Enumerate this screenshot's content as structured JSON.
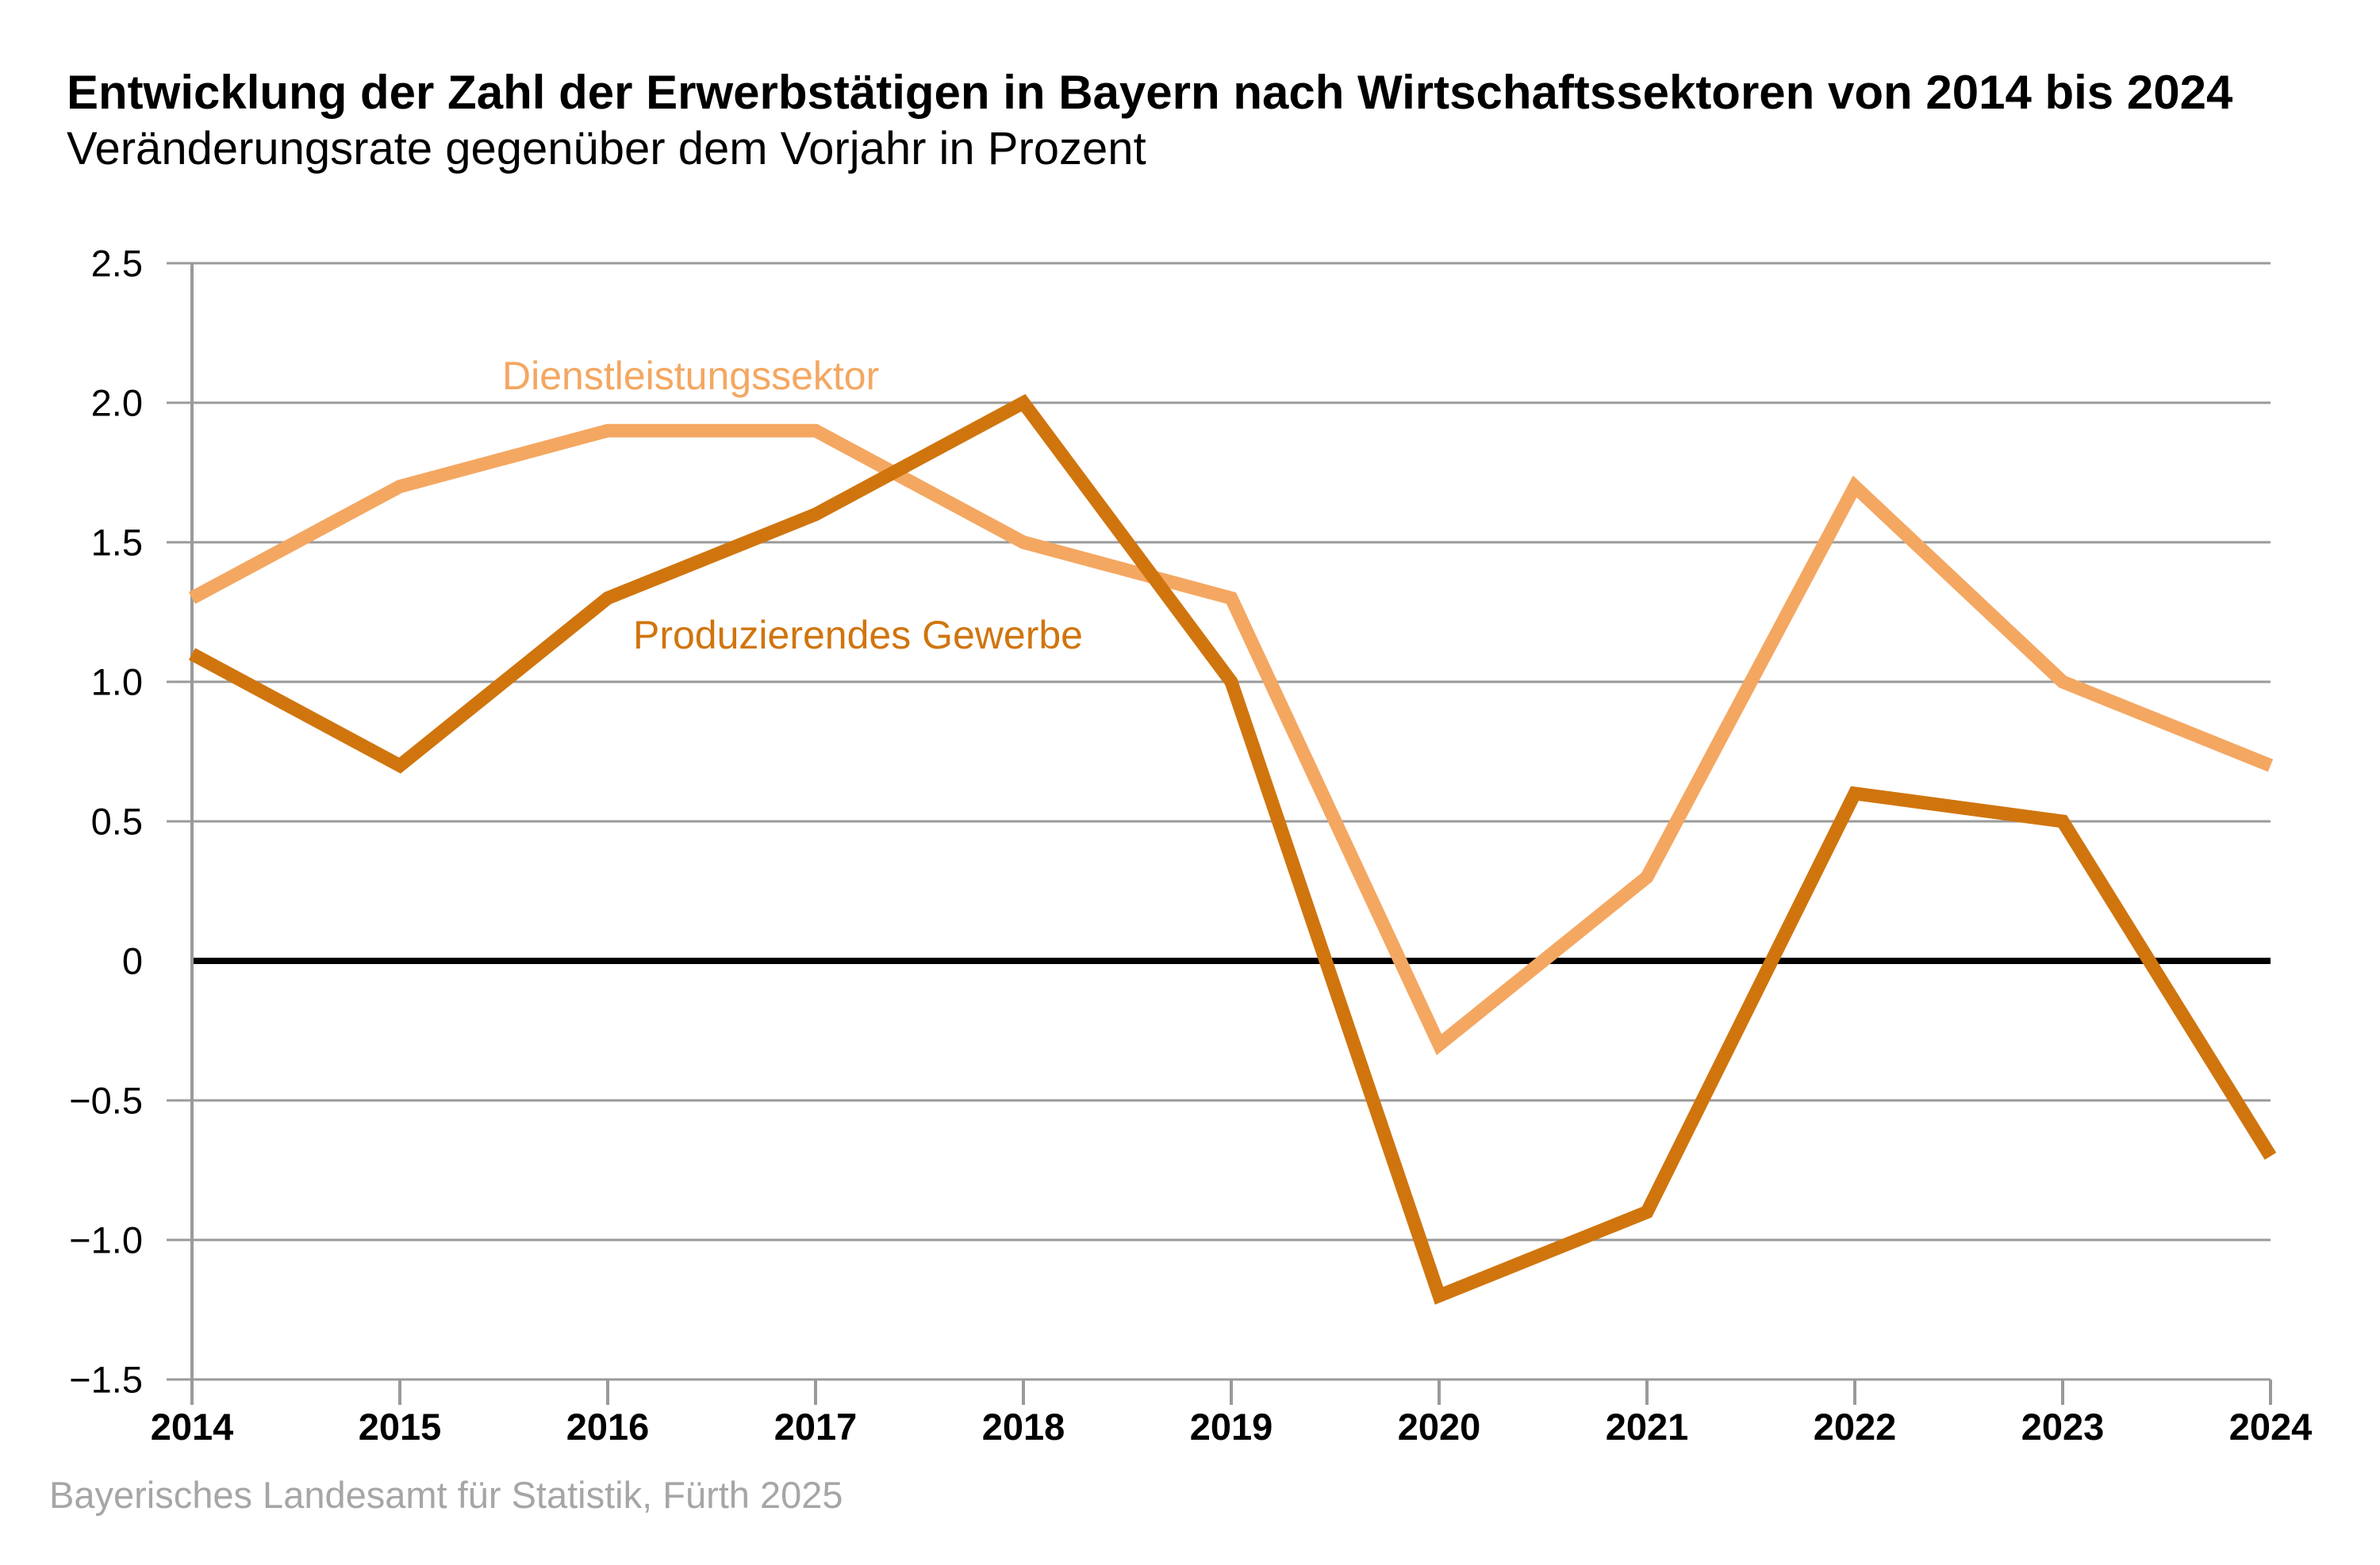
{
  "header": {
    "title": "Entwicklung der Zahl der Erwerbstätigen in Bayern nach Wirtschaftssektoren von 2014 bis 2024",
    "subtitle": "Veränderungsrate gegenüber dem Vorjahr in Prozent"
  },
  "footer": {
    "source": "Bayerisches Landesamt für Statistik, Fürth 2025"
  },
  "chart_data": {
    "type": "line",
    "x": [
      2014,
      2015,
      2016,
      2017,
      2018,
      2019,
      2020,
      2021,
      2022,
      2023,
      2024
    ],
    "x_tick_labels": [
      "2014",
      "2015",
      "2016",
      "2017",
      "2018",
      "2019",
      "2020",
      "2021",
      "2022",
      "2023",
      "2024"
    ],
    "series": [
      {
        "name": "Dienstleistungssektor",
        "color": "#f4a761",
        "values": [
          1.3,
          1.7,
          1.9,
          1.9,
          1.5,
          1.3,
          -0.3,
          0.3,
          1.7,
          1.0,
          0.7
        ]
      },
      {
        "name": "Produzierendes Gewerbe",
        "color": "#d0750e",
        "values": [
          1.1,
          0.7,
          1.3,
          1.6,
          2.0,
          1.0,
          -1.2,
          -0.9,
          0.6,
          0.5,
          -0.7
        ]
      }
    ],
    "ylim": [
      -1.5,
      2.5
    ],
    "y_tick_step": 0.5,
    "y_tick_labels": [
      "2.5",
      "2.0",
      "1.5",
      "1.0",
      "0.5",
      "0",
      "−0.5",
      "−1.0",
      "−1.5"
    ],
    "grid": "horizontal",
    "grid_color": "#9a9a9a",
    "zero_line_color": "#000000",
    "axis_label_color": "#000000",
    "legend": "inline-annotations"
  }
}
